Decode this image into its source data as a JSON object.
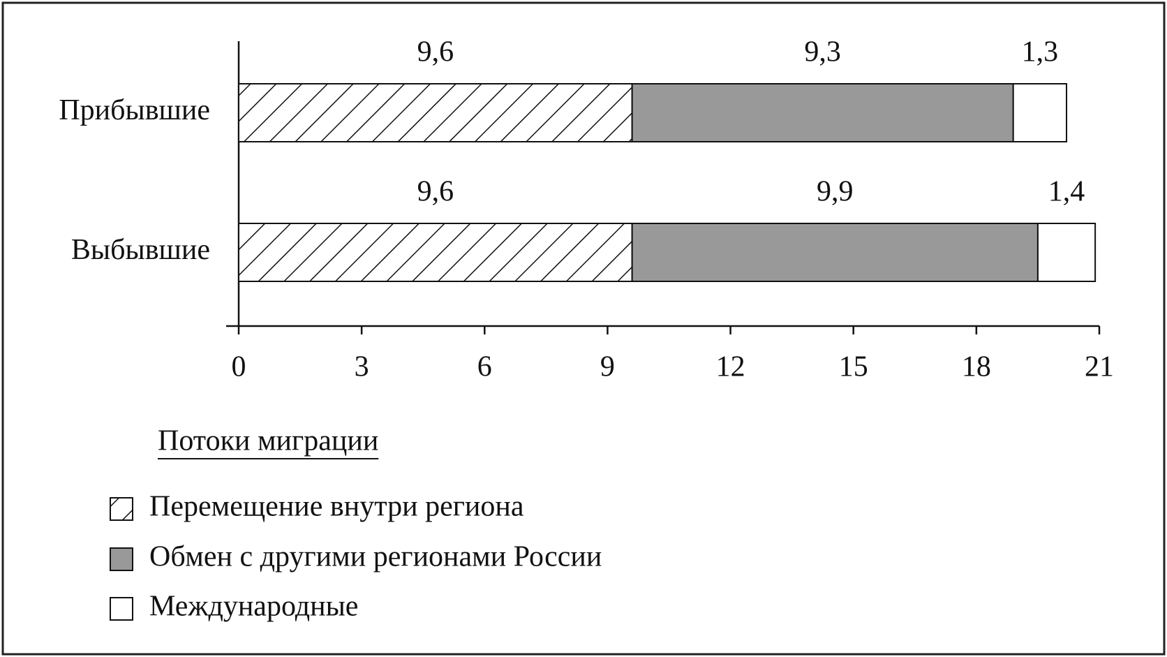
{
  "chart_data": {
    "type": "stacked-barh",
    "categories": [
      "Прибывшие",
      "Выбывшие"
    ],
    "series": [
      {
        "name": "Перемещение внутри региона",
        "color": "#ffffff",
        "hatch": true,
        "values": [
          9.6,
          9.6
        ],
        "value_labels": [
          "9,6",
          "9,6"
        ]
      },
      {
        "name": "Обмен с другими регионами России",
        "color": "#999999",
        "hatch": false,
        "values": [
          9.3,
          9.9
        ],
        "value_labels": [
          "9,3",
          "9,9"
        ]
      },
      {
        "name": "Международные",
        "color": "#ffffff",
        "hatch": false,
        "values": [
          1.3,
          1.4
        ],
        "value_labels": [
          "1,3",
          "1,4"
        ]
      }
    ],
    "xlim": [
      0,
      21
    ],
    "xticks": [
      0,
      3,
      6,
      9,
      12,
      15,
      18,
      21
    ],
    "legend_title": "Потоки миграции"
  }
}
